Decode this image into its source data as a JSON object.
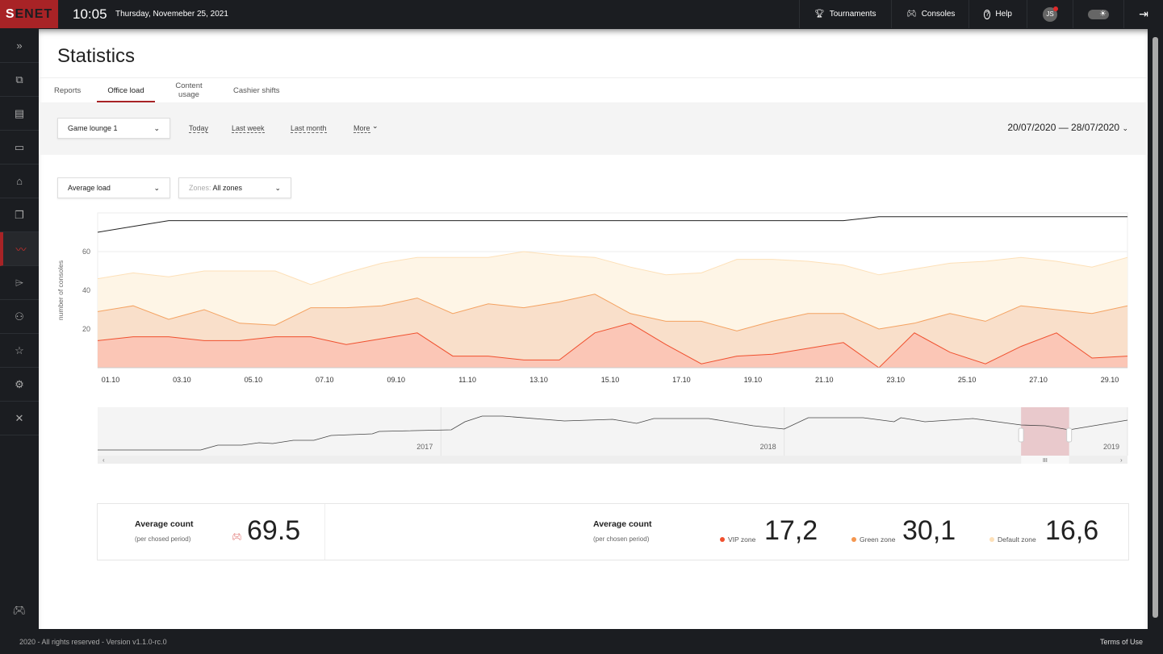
{
  "header": {
    "logo": "SENET",
    "time": "10:05",
    "date": "Thursday, Novemeber 25, 2021",
    "nav": [
      {
        "label": "Tournaments",
        "icon": "trophy-icon"
      },
      {
        "label": "Consoles",
        "icon": "gamepad-icon"
      },
      {
        "label": "Help",
        "icon": "help-icon"
      }
    ],
    "avatar": "JS",
    "notification_color": "#e02a2a"
  },
  "sidebar": {
    "items": [
      "expand",
      "consoles",
      "lockers",
      "devices",
      "store",
      "cards",
      "statistics",
      "tickets",
      "users",
      "favorites",
      "settings",
      "tools"
    ],
    "active": "statistics",
    "bottom": "gamepad",
    "accent": "#a82326"
  },
  "page": {
    "title": "Statistics",
    "tabs": [
      "Reports",
      "Office load",
      "Content usage",
      "Cashier shifts"
    ],
    "active_tab": "Office load"
  },
  "filters": {
    "location": "Game lounge 1",
    "quick": [
      "Today",
      "Last week",
      "Last month",
      "More"
    ],
    "range": "20/07/2020 — 28/07/2020",
    "metric": "Average load",
    "zones_label": "Zones:",
    "zones_value": "All zones"
  },
  "chart_data": {
    "type": "area",
    "ylabel": "number of consoles",
    "ylim": [
      0,
      80
    ],
    "yticks": [
      20,
      40,
      60
    ],
    "xticks": [
      "01.10",
      "03.10",
      "05.10",
      "07.10",
      "09.10",
      "11.10",
      "13.10",
      "15.10",
      "17.10",
      "19.10",
      "21.10",
      "23.10",
      "25.10",
      "27.10",
      "29.10"
    ],
    "series": [
      {
        "name": "Default zone",
        "color": "#fde0b8",
        "fill": "#fef5e6",
        "values": [
          46,
          49,
          47,
          50,
          50,
          50,
          43,
          49,
          54,
          57,
          57,
          57,
          60,
          58,
          57,
          52,
          48,
          49,
          56,
          56,
          55,
          53,
          48,
          51,
          54,
          55,
          57,
          55,
          52,
          57
        ]
      },
      {
        "name": "Green zone",
        "color": "#f4a261",
        "fill": "#f9dfca",
        "values": [
          29,
          32,
          25,
          30,
          23,
          22,
          31,
          31,
          32,
          36,
          28,
          33,
          31,
          34,
          38,
          28,
          24,
          24,
          19,
          24,
          28,
          28,
          20,
          23,
          28,
          24,
          32,
          30,
          28,
          32
        ]
      },
      {
        "name": "VIP zone",
        "color": "#f0502e",
        "fill": "#fbc6b6",
        "values": [
          14,
          16,
          16,
          14,
          14,
          16,
          16,
          12,
          15,
          18,
          6,
          6,
          4,
          4,
          18,
          23,
          12,
          2,
          6,
          7,
          10,
          13,
          0,
          18,
          8,
          2,
          11,
          18,
          5,
          6
        ]
      },
      {
        "name": "total",
        "color": "#222222",
        "values": [
          70,
          73,
          76,
          76,
          76,
          76,
          76,
          76,
          76,
          76,
          76,
          76,
          76,
          76,
          76,
          76,
          76,
          76,
          76,
          76,
          76,
          76,
          78,
          78,
          78,
          78,
          78,
          78,
          78,
          78
        ]
      }
    ],
    "navigator": {
      "years": [
        "2017",
        "2018",
        "2019"
      ],
      "selection": [
        2018.69,
        2018.83
      ],
      "points": [
        [
          2016.0,
          4
        ],
        [
          2016.3,
          4
        ],
        [
          2016.35,
          16
        ],
        [
          2016.42,
          16
        ],
        [
          2016.47,
          22
        ],
        [
          2016.51,
          20
        ],
        [
          2016.57,
          28
        ],
        [
          2016.63,
          28
        ],
        [
          2016.68,
          40
        ],
        [
          2016.8,
          44
        ],
        [
          2016.82,
          50
        ],
        [
          2017.03,
          54
        ],
        [
          2017.07,
          74
        ],
        [
          2017.12,
          88
        ],
        [
          2017.18,
          88
        ],
        [
          2017.36,
          76
        ],
        [
          2017.5,
          80
        ],
        [
          2017.57,
          70
        ],
        [
          2017.62,
          82
        ],
        [
          2017.78,
          82
        ],
        [
          2017.91,
          64
        ],
        [
          2018.0,
          56
        ],
        [
          2018.07,
          84
        ],
        [
          2018.23,
          84
        ],
        [
          2018.32,
          74
        ],
        [
          2018.34,
          84
        ],
        [
          2018.41,
          74
        ],
        [
          2018.55,
          82
        ],
        [
          2018.69,
          66
        ],
        [
          2018.76,
          64
        ],
        [
          2018.83,
          54
        ],
        [
          2019.0,
          78
        ]
      ]
    }
  },
  "stats": {
    "title": "Average count",
    "sub1": "(per chosed period)",
    "total": "69.5",
    "sub2": "(per chosen period)",
    "zones": [
      {
        "label": "VIP zone",
        "value": "17,2",
        "color": "#f0502e"
      },
      {
        "label": "Green zone",
        "value": "30,1",
        "color": "#f4964f"
      },
      {
        "label": "Default zone",
        "value": "16,6",
        "color": "#fde0b8"
      }
    ]
  },
  "footer": {
    "copyright": "2020 - All rights reserved - Version v1.1.0-rc.0",
    "terms": "Terms of Use"
  }
}
